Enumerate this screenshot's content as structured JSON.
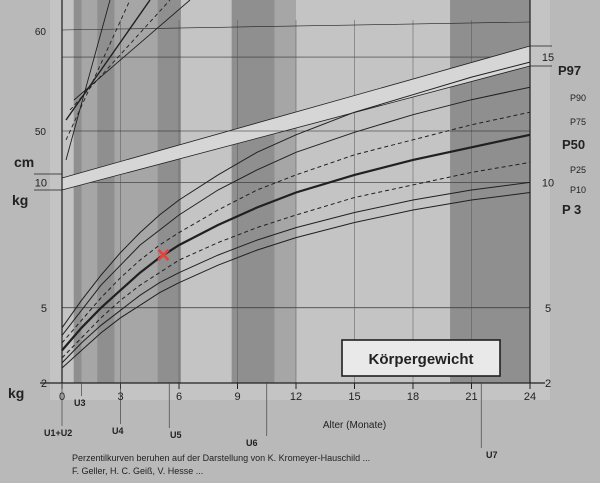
{
  "chart_data": {
    "type": "line",
    "title": "Körpergewicht",
    "xlabel": "Alter (Monate)",
    "ylabel": "kg",
    "xlim": [
      0,
      24
    ],
    "ylim": [
      2,
      16
    ],
    "x_ticks": [
      "0",
      "3",
      "6",
      "9",
      "12",
      "15",
      "18",
      "21",
      "24"
    ],
    "y_ticks_left": [
      "2",
      "5",
      "10"
    ],
    "y_ticks_right": [
      "2",
      "5",
      "10",
      "15"
    ],
    "unit_labels": {
      "weight": "kg",
      "height": "cm"
    },
    "height_ticks": [
      "50",
      "60"
    ],
    "checkups": [
      "U1+U2",
      "U3",
      "U4",
      "U5",
      "U6",
      "U7"
    ],
    "checkup_months": [
      0,
      1,
      3,
      5.5,
      10.5,
      21.5
    ],
    "x": [
      0,
      1,
      2,
      3,
      4,
      5,
      6,
      8,
      10,
      12,
      15,
      18,
      21,
      24
    ],
    "series": [
      {
        "name": "P 3",
        "style": "solid",
        "values": [
          2.6,
          3.3,
          4.0,
          4.6,
          5.1,
          5.6,
          6.0,
          6.7,
          7.3,
          7.8,
          8.4,
          8.9,
          9.3,
          9.6
        ]
      },
      {
        "name": "P10",
        "style": "solid",
        "values": [
          2.8,
          3.6,
          4.3,
          4.9,
          5.5,
          6.0,
          6.4,
          7.1,
          7.7,
          8.2,
          8.8,
          9.3,
          9.7,
          10.0
        ]
      },
      {
        "name": "P25",
        "style": "dashed",
        "values": [
          3.0,
          3.8,
          4.6,
          5.3,
          5.9,
          6.4,
          6.9,
          7.6,
          8.2,
          8.7,
          9.4,
          9.9,
          10.4,
          10.8
        ]
      },
      {
        "name": "P50",
        "style": "bold",
        "values": [
          3.3,
          4.2,
          5.0,
          5.7,
          6.4,
          7.0,
          7.5,
          8.3,
          9.0,
          9.6,
          10.3,
          10.9,
          11.4,
          11.9
        ]
      },
      {
        "name": "P75",
        "style": "dashed",
        "values": [
          3.6,
          4.5,
          5.4,
          6.2,
          6.9,
          7.5,
          8.0,
          8.9,
          9.7,
          10.3,
          11.1,
          11.7,
          12.3,
          12.8
        ]
      },
      {
        "name": "P90",
        "style": "solid",
        "values": [
          3.9,
          4.9,
          5.9,
          6.7,
          7.5,
          8.1,
          8.7,
          9.7,
          10.5,
          11.2,
          12.0,
          12.7,
          13.3,
          13.8
        ]
      },
      {
        "name": "P97",
        "style": "solid",
        "values": [
          4.2,
          5.3,
          6.3,
          7.2,
          8.0,
          8.7,
          9.3,
          10.3,
          11.2,
          11.9,
          12.8,
          13.5,
          14.2,
          14.8
        ]
      }
    ],
    "marker": {
      "x": 5.2,
      "y": 7.1,
      "symbol": "×",
      "color": "#e8413b"
    },
    "colors": {
      "band_dark": "#8f8f8f",
      "band_light": "#a6a6a6",
      "paper": "#c4c4c4",
      "ink": "#202020",
      "marker": "#e8413b"
    }
  },
  "footer": {
    "line1": "Perzentilkurven beruhen auf der Darstellung von K. Kromeyer-Hauschild ...",
    "line2": "F. Geller, H. C. Geiß, V. Hesse ..."
  }
}
